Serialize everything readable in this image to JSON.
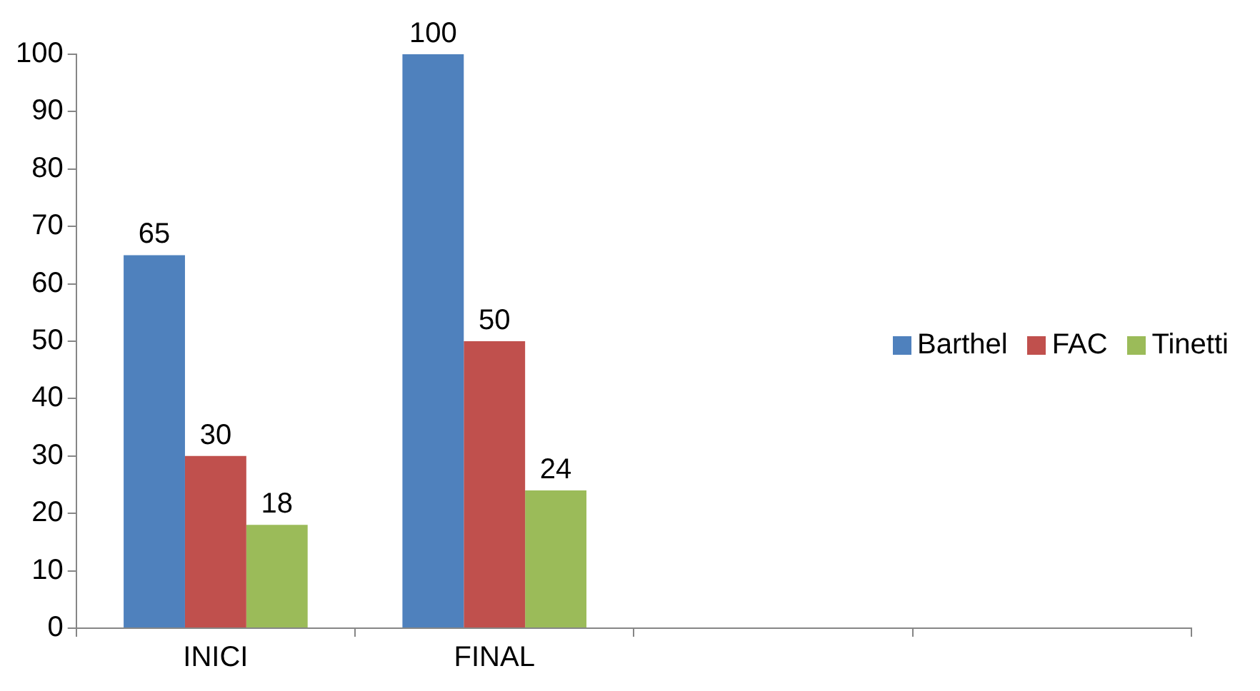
{
  "chart_data": {
    "type": "bar",
    "categories": [
      "INICI",
      "FINAL",
      null,
      null
    ],
    "series": [
      {
        "name": "Barthel",
        "color": "#4f81bd",
        "values": [
          65,
          100,
          null,
          null
        ]
      },
      {
        "name": "FAC",
        "color": "#c0504d",
        "values": [
          30,
          50,
          null,
          null
        ]
      },
      {
        "name": "Tinetti",
        "color": "#9bbb59",
        "values": [
          18,
          24,
          null,
          null
        ]
      }
    ],
    "ylim": [
      0,
      100
    ],
    "yticks": [
      0,
      10,
      20,
      30,
      40,
      50,
      60,
      70,
      80,
      90,
      100
    ],
    "grid": false,
    "legend": "right",
    "data_labels": true
  }
}
